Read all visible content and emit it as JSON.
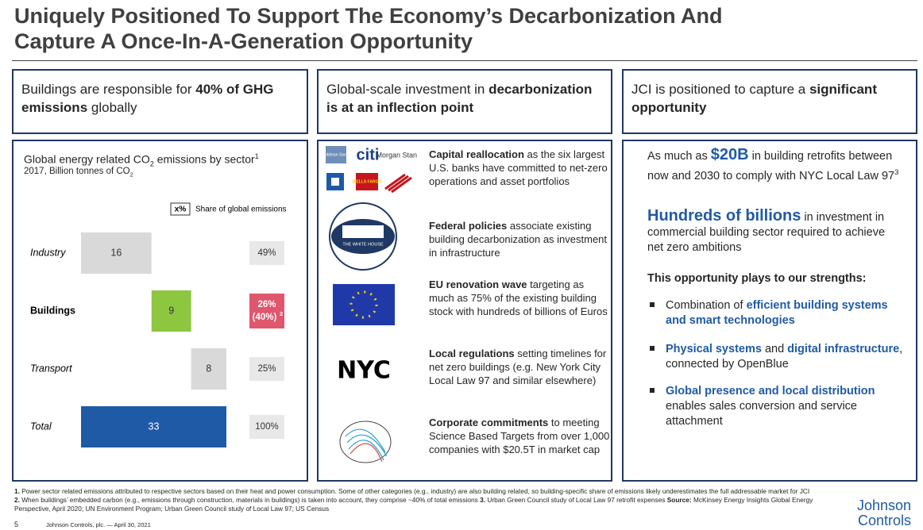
{
  "title": [
    "Uniquely Positioned To Support The Economy’s Decarbonization And",
    "Capture A Once-In-A-Generation Opportunity"
  ],
  "columns": [
    {
      "header": [
        "Buildings are responsible for ",
        "40% of GHG emissions",
        " globally"
      ]
    },
    {
      "header": [
        "Global-scale investment in ",
        "decarbonization is at an inflection point"
      ]
    },
    {
      "header": [
        "JCI is positioned to capture a ",
        "significant opportunity"
      ]
    }
  ],
  "chart_data": {
    "type": "waterfall",
    "title": [
      "Global energy related CO",
      "2",
      " emissions by sector",
      "1"
    ],
    "subtitle": [
      "2017, Billion tonnes of CO",
      "2"
    ],
    "legend": [
      "x%",
      "Share of global emissions"
    ],
    "categories": [
      "Industry",
      "Buildings",
      "Transport",
      "Total"
    ],
    "values": [
      16,
      9,
      8,
      33
    ],
    "is_total": [
      false,
      false,
      false,
      true
    ],
    "highlight": [
      false,
      true,
      false,
      false
    ],
    "colors": [
      "#d9d9d9",
      "#8dc63f",
      "#d9d9d9",
      "#1f5aa6"
    ],
    "shares": [
      "49%",
      "26%",
      "25%",
      "100%"
    ],
    "share_notes": [
      null,
      [
        "(40%)",
        "2"
      ],
      null,
      null
    ]
  },
  "logos": {
    "banks": [
      "Goldman Sachs",
      "citi",
      "Morgan Stanley",
      "WELLS FARGO"
    ],
    "white_house": "THE WHITE HOUSE",
    "nyc": "NYC"
  },
  "investments": [
    [
      "Capital reallocation",
      " as the six largest U.S. banks have committed to net-zero operations and asset portfolios"
    ],
    [
      "Federal policies",
      " associate existing building decarbonization as investment in infrastructure"
    ],
    [
      "EU renovation wave",
      " targeting as much as 75% of the existing building stock with hundreds of billions of Euros"
    ],
    [
      "Local regulations",
      " setting timelines for net zero buildings (e.g. New York City Local Law 97 and similar elsewhere)"
    ],
    [
      "Corporate commitments",
      " to meeting Science Based Targets from over 1,000 companies with $20.5T in market cap"
    ]
  ],
  "opportunity": {
    "retrofits": [
      "As much as ",
      "$20B",
      " in building retrofits between now and 2030 to comply with NYC Local Law 97",
      "3"
    ],
    "investment": [
      "Hundreds of billions",
      " in investment in commercial building sector required to achieve net zero ambitions"
    ],
    "strengths_heading": "This opportunity plays to our strengths:",
    "strengths": [
      [
        "Combination of ",
        "efficient building systems and smart technologies"
      ],
      [
        "Physical systems",
        " and ",
        "digital infrastructure",
        ", connected by OpenBlue"
      ],
      [
        "Global presence and local distribution",
        " enables sales conversion and service attachment"
      ]
    ]
  },
  "footnotes": [
    "1.",
    " Power sector related emissions attributed to respective sectors based on their heat and power consumption.  Some of other categories (e.g., industry) are also building related, so building-specific share of emissions likely underestimates the full addressable market for JCI ",
    "2.",
    " When buildings’ embedded carbon (e.g., emissions through construction, materials in buildings) is taken into account, they comprise ~40% of total emissions ",
    "3.",
    " Urban Green Council study of Local Law 97 retrofit expenses ",
    "Source:",
    " McKinsey Energy Insights Global Energy Perspective, April 2020; UN Environment Program; Urban Green Council study of Local Law 97; US Census"
  ],
  "footer": {
    "page": "5",
    "text": "Johnson Controls, plc. — April 30, 2021",
    "logo": [
      "Johnson",
      "Controls"
    ]
  }
}
